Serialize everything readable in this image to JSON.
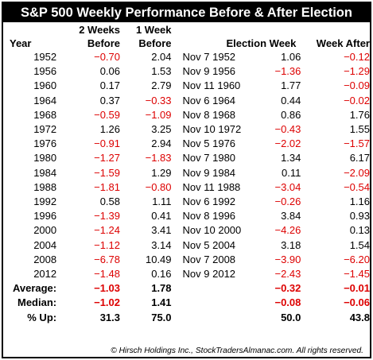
{
  "title": "S&P 500 Weekly Performance Before & After Election",
  "headers": {
    "year": "Year",
    "two_weeks_line1": "2 Weeks",
    "two_weeks_line2": "Before",
    "one_week_line1": "1 Week",
    "one_week_line2": "Before",
    "election_week": "Election Week",
    "week_after": "Week After"
  },
  "rows": [
    {
      "year": "1952",
      "two_weeks": "−0.70",
      "one_week": "2.04",
      "date": "Nov 7 1952",
      "election": "1.06",
      "after": "−0.12"
    },
    {
      "year": "1956",
      "two_weeks": "0.06",
      "one_week": "1.53",
      "date": "Nov 9 1956",
      "election": "−1.36",
      "after": "−1.29"
    },
    {
      "year": "1960",
      "two_weeks": "0.17",
      "one_week": "2.79",
      "date": "Nov 11 1960",
      "election": "1.77",
      "after": "−0.09"
    },
    {
      "year": "1964",
      "two_weeks": "0.37",
      "one_week": "−0.33",
      "date": "Nov 6 1964",
      "election": "0.44",
      "after": "−0.02"
    },
    {
      "year": "1968",
      "two_weeks": "−0.59",
      "one_week": "−1.09",
      "date": "Nov 8 1968",
      "election": "0.86",
      "after": "1.76"
    },
    {
      "year": "1972",
      "two_weeks": "1.26",
      "one_week": "3.25",
      "date": "Nov 10 1972",
      "election": "−0.43",
      "after": "1.55"
    },
    {
      "year": "1976",
      "two_weeks": "−0.91",
      "one_week": "2.94",
      "date": "Nov 5 1976",
      "election": "−2.02",
      "after": "−1.57"
    },
    {
      "year": "1980",
      "two_weeks": "−1.27",
      "one_week": "−1.83",
      "date": "Nov 7 1980",
      "election": "1.34",
      "after": "6.17"
    },
    {
      "year": "1984",
      "two_weeks": "−1.59",
      "one_week": "1.29",
      "date": "Nov 9 1984",
      "election": "0.11",
      "after": "−2.09"
    },
    {
      "year": "1988",
      "two_weeks": "−1.81",
      "one_week": "−0.80",
      "date": "Nov 11 1988",
      "election": "−3.04",
      "after": "−0.54"
    },
    {
      "year": "1992",
      "two_weeks": "0.58",
      "one_week": "1.11",
      "date": "Nov 6 1992",
      "election": "−0.26",
      "after": "1.16"
    },
    {
      "year": "1996",
      "two_weeks": "−1.39",
      "one_week": "0.41",
      "date": "Nov 8 1996",
      "election": "3.84",
      "after": "0.93"
    },
    {
      "year": "2000",
      "two_weeks": "−1.24",
      "one_week": "3.41",
      "date": "Nov 10 2000",
      "election": "−4.26",
      "after": "0.13"
    },
    {
      "year": "2004",
      "two_weeks": "−1.12",
      "one_week": "3.14",
      "date": "Nov 5 2004",
      "election": "3.18",
      "after": "1.54"
    },
    {
      "year": "2008",
      "two_weeks": "−6.78",
      "one_week": "10.49",
      "date": "Nov 7 2008",
      "election": "−3.90",
      "after": "−6.20"
    },
    {
      "year": "2012",
      "two_weeks": "−1.48",
      "one_week": "0.16",
      "date": "Nov 9 2012",
      "election": "−2.43",
      "after": "−1.45"
    }
  ],
  "summary": [
    {
      "label": "Average:",
      "two_weeks": "−1.03",
      "one_week": "1.78",
      "election": "−0.32",
      "after": "−0.01"
    },
    {
      "label": "Median:",
      "two_weeks": "−1.02",
      "one_week": "1.41",
      "election": "−0.08",
      "after": "−0.06"
    },
    {
      "label": "% Up:",
      "two_weeks": "31.3",
      "one_week": "75.0",
      "election": "50.0",
      "after": "43.8"
    }
  ],
  "footer": "© Hirsch Holdings Inc., StockTradersAlmanac.com. All rights reserved.",
  "colors": {
    "negative": "#dd0000",
    "title_bg": "#000000",
    "title_fg": "#ffffff"
  }
}
